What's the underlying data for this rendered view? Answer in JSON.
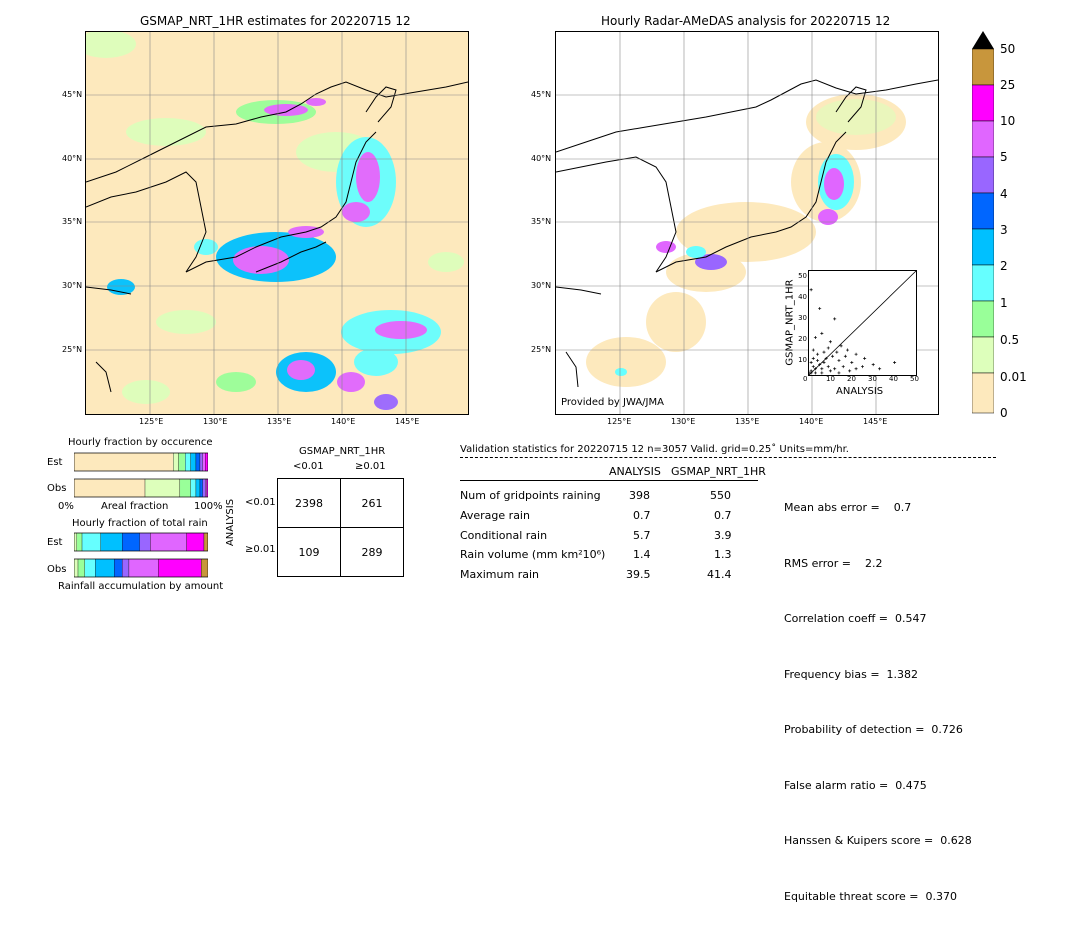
{
  "map_left": {
    "title": "GSMAP_NRT_1HR estimates for 20220715 12",
    "lat_labels": [
      "45°N",
      "40°N",
      "35°N",
      "30°N",
      "25°N"
    ],
    "lon_labels": [
      "125°E",
      "130°E",
      "135°E",
      "140°E",
      "145°E"
    ]
  },
  "map_right": {
    "title": "Hourly Radar-AMeDAS analysis for 20220715 12",
    "lat_labels": [
      "45°N",
      "40°N",
      "35°N",
      "30°N",
      "25°N"
    ],
    "lon_labels": [
      "125°E",
      "130°E",
      "135°E",
      "140°E",
      "145°E"
    ],
    "credit": "Provided by JWA/JMA"
  },
  "colorbar": {
    "labels": [
      "50",
      "25",
      "10",
      "5",
      "4",
      "3",
      "2",
      "1",
      "0.5",
      "0.01",
      "0"
    ],
    "colors": [
      "#c8963c",
      "#ff00ff",
      "#e066ff",
      "#9966ff",
      "#0066ff",
      "#00c0ff",
      "#66ffff",
      "#99ff99",
      "#ddffbb",
      "#fde9bd"
    ]
  },
  "chart_data": [
    {
      "type": "scatter",
      "title": "",
      "xlabel": "ANALYSIS",
      "ylabel": "GSMAP_NRT_1HR",
      "xlim": [
        0,
        50
      ],
      "ylim": [
        0,
        50
      ],
      "xticks": [
        "0",
        "10",
        "20",
        "30",
        "40",
        "50"
      ],
      "yticks": [
        "0",
        "10",
        "20",
        "30",
        "40",
        "50"
      ],
      "points": [
        [
          1,
          41
        ],
        [
          5,
          32
        ],
        [
          6,
          20
        ],
        [
          12,
          27
        ],
        [
          10,
          16
        ],
        [
          15,
          14
        ],
        [
          18,
          12
        ],
        [
          22,
          10
        ],
        [
          3,
          18
        ],
        [
          2,
          12
        ],
        [
          4,
          10
        ],
        [
          8,
          8
        ],
        [
          7,
          6
        ],
        [
          11,
          9
        ],
        [
          14,
          7
        ],
        [
          20,
          6
        ],
        [
          26,
          8
        ],
        [
          30,
          5
        ],
        [
          40,
          6
        ],
        [
          2,
          4
        ],
        [
          3,
          3
        ],
        [
          1,
          2
        ],
        [
          5,
          5
        ],
        [
          6,
          3
        ],
        [
          9,
          4
        ],
        [
          12,
          3
        ],
        [
          16,
          4
        ],
        [
          0,
          1
        ],
        [
          1,
          6
        ],
        [
          2,
          8
        ],
        [
          4,
          7
        ],
        [
          7,
          11
        ],
        [
          9,
          13
        ],
        [
          13,
          11
        ],
        [
          17,
          9
        ],
        [
          25,
          4
        ],
        [
          33,
          3
        ],
        [
          1,
          1
        ],
        [
          3,
          1
        ],
        [
          6,
          1
        ],
        [
          10,
          2
        ],
        [
          14,
          1
        ],
        [
          19,
          2
        ],
        [
          22,
          3
        ]
      ]
    },
    {
      "type": "bar",
      "title": "Hourly fraction by occurence",
      "categories": [
        "Est",
        "Obs"
      ],
      "xlabel": "Areal fraction",
      "tick_labels": [
        "0%",
        "100%"
      ],
      "colors": [
        "#fde9bd",
        "#ddffbb",
        "#99ff99",
        "#66ffff",
        "#00c0ff",
        "#0066ff",
        "#9966ff",
        "#e066ff",
        "#ff00ff",
        "#c8963c"
      ],
      "series_values": {
        "Est": [
          0.74,
          0.04,
          0.05,
          0.04,
          0.04,
          0.03,
          0.02,
          0.02,
          0.02,
          0.0
        ],
        "Obs": [
          0.53,
          0.26,
          0.08,
          0.04,
          0.03,
          0.02,
          0.02,
          0.01,
          0.01,
          0.0
        ]
      }
    },
    {
      "type": "bar",
      "title": "Hourly fraction of total rain",
      "categories": [
        "Est",
        "Obs"
      ],
      "xlabel": "Rainfall accumulation by amount",
      "colors": [
        "#fde9bd",
        "#ddffbb",
        "#99ff99",
        "#66ffff",
        "#00c0ff",
        "#0066ff",
        "#9966ff",
        "#e066ff",
        "#ff00ff",
        "#c8963c"
      ],
      "series_values": {
        "Est": [
          0.0,
          0.02,
          0.04,
          0.14,
          0.16,
          0.13,
          0.08,
          0.27,
          0.13,
          0.03
        ],
        "Obs": [
          0.0,
          0.03,
          0.05,
          0.08,
          0.14,
          0.06,
          0.05,
          0.22,
          0.32,
          0.06
        ]
      }
    },
    {
      "type": "table",
      "title": "GSMAP_NRT_1HR",
      "col_headers": [
        "<0.01",
        "≥0.01"
      ],
      "row_label": "ANALYSIS",
      "row_headers": [
        "<0.01",
        "≥0.01"
      ],
      "cells": [
        [
          "2398",
          "261"
        ],
        [
          "109",
          "289"
        ]
      ]
    }
  ],
  "validation": {
    "header": "Validation statistics for 20220715 12  n=3057 Valid. grid=0.25˚ Units=mm/hr.",
    "col_analysis": "ANALYSIS",
    "col_gsmap": "GSMAP_NRT_1HR",
    "rows": [
      {
        "label": "Num of gridpoints raining",
        "analysis": "398",
        "gsmap": "550"
      },
      {
        "label": "Average rain",
        "analysis": "0.7",
        "gsmap": "0.7"
      },
      {
        "label": "Conditional rain",
        "analysis": "5.7",
        "gsmap": "3.9"
      },
      {
        "label": "Rain volume (mm km²10⁶)",
        "analysis": "1.4",
        "gsmap": "1.3"
      },
      {
        "label": "Maximum rain",
        "analysis": "39.5",
        "gsmap": "41.4"
      }
    ],
    "scores": [
      "Mean abs error =    0.7",
      "RMS error =    2.2",
      "Correlation coeff =  0.547",
      "Frequency bias =  1.382",
      "Probability of detection =  0.726",
      "False alarm ratio =  0.475",
      "Hanssen & Kuipers score =  0.628",
      "Equitable threat score =  0.370"
    ]
  }
}
